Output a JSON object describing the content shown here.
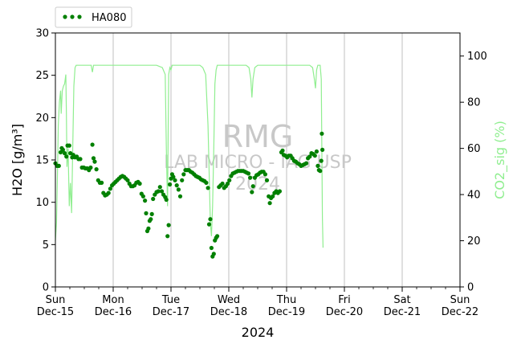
{
  "chart_data": {
    "type": "scatter",
    "legend": {
      "placement": "top-left-outside",
      "entries": [
        "HA080"
      ]
    },
    "xlabel": "2024",
    "ylabel_left": "H2O [g/m³]",
    "ylabel_right": "CO2_sig (%)",
    "xlim": [
      "2024-12-15",
      "2024-12-22"
    ],
    "ylim_left": [
      0,
      30
    ],
    "ylim_right": [
      0,
      110
    ],
    "yticks_left": [
      0,
      5,
      10,
      15,
      20,
      25,
      30
    ],
    "yticks_right": [
      0,
      20,
      40,
      60,
      80,
      100
    ],
    "grid": "vertical at daily ticks",
    "x_tick_labels": [
      {
        "day": "Sun",
        "date": "Dec-15"
      },
      {
        "day": "Mon",
        "date": "Dec-16"
      },
      {
        "day": "Tue",
        "date": "Dec-17"
      },
      {
        "day": "Wed",
        "date": "Dec-18"
      },
      {
        "day": "Thu",
        "date": "Dec-19"
      },
      {
        "day": "Fri",
        "date": "Dec-20"
      },
      {
        "day": "Sat",
        "date": "Dec-21"
      },
      {
        "day": "Sun",
        "date": "Dec-22"
      }
    ],
    "watermark": [
      "RMG",
      "LAB MICRO - IAG USP",
      "2024"
    ],
    "colors": {
      "h2o": "#008000",
      "co2": "#90ee90",
      "grid": "#b0b0b0",
      "watermark": "#c8c8c8"
    },
    "series": [
      {
        "name": "HA080",
        "axis": "left",
        "style": "dotted markers",
        "points": [
          [
            0.0,
            14.6
          ],
          [
            0.03,
            14.3
          ],
          [
            0.06,
            14.3
          ],
          [
            0.09,
            15.9
          ],
          [
            0.11,
            16.4
          ],
          [
            0.13,
            16.2
          ],
          [
            0.16,
            15.8
          ],
          [
            0.19,
            15.4
          ],
          [
            0.21,
            16.7
          ],
          [
            0.24,
            16.7
          ],
          [
            0.26,
            15.8
          ],
          [
            0.29,
            15.3
          ],
          [
            0.31,
            15.6
          ],
          [
            0.34,
            15.3
          ],
          [
            0.37,
            15.4
          ],
          [
            0.4,
            15.1
          ],
          [
            0.43,
            15.1
          ],
          [
            0.46,
            14.1
          ],
          [
            0.49,
            14.1
          ],
          [
            0.52,
            14.0
          ],
          [
            0.55,
            14.0
          ],
          [
            0.58,
            13.8
          ],
          [
            0.61,
            14.1
          ],
          [
            0.64,
            16.8
          ],
          [
            0.66,
            15.2
          ],
          [
            0.68,
            14.8
          ],
          [
            0.71,
            13.9
          ],
          [
            0.74,
            12.6
          ],
          [
            0.77,
            12.3
          ],
          [
            0.8,
            12.3
          ],
          [
            0.83,
            11.1
          ],
          [
            0.86,
            10.8
          ],
          [
            0.89,
            10.9
          ],
          [
            0.92,
            11.1
          ],
          [
            0.95,
            11.6
          ],
          [
            0.98,
            12.0
          ],
          [
            1.01,
            12.2
          ],
          [
            1.04,
            12.4
          ],
          [
            1.07,
            12.6
          ],
          [
            1.1,
            12.8
          ],
          [
            1.13,
            13.0
          ],
          [
            1.16,
            13.1
          ],
          [
            1.19,
            13.0
          ],
          [
            1.22,
            12.8
          ],
          [
            1.25,
            12.6
          ],
          [
            1.28,
            12.2
          ],
          [
            1.31,
            11.9
          ],
          [
            1.34,
            11.9
          ],
          [
            1.37,
            12.0
          ],
          [
            1.4,
            12.3
          ],
          [
            1.43,
            12.4
          ],
          [
            1.46,
            12.2
          ],
          [
            1.49,
            11.0
          ],
          [
            1.52,
            10.7
          ],
          [
            1.55,
            10.2
          ],
          [
            1.57,
            8.7
          ],
          [
            1.59,
            6.6
          ],
          [
            1.61,
            6.9
          ],
          [
            1.63,
            7.8
          ],
          [
            1.65,
            8.0
          ],
          [
            1.67,
            8.6
          ],
          [
            1.69,
            10.4
          ],
          [
            1.72,
            10.9
          ],
          [
            1.75,
            11.2
          ],
          [
            1.78,
            11.3
          ],
          [
            1.81,
            11.8
          ],
          [
            1.84,
            11.3
          ],
          [
            1.87,
            10.9
          ],
          [
            1.9,
            10.6
          ],
          [
            1.92,
            10.3
          ],
          [
            1.94,
            6.0
          ],
          [
            1.96,
            7.3
          ],
          [
            1.98,
            12.1
          ],
          [
            2.0,
            12.8
          ],
          [
            2.02,
            13.3
          ],
          [
            2.04,
            13.0
          ],
          [
            2.07,
            12.6
          ],
          [
            2.1,
            12.0
          ],
          [
            2.13,
            11.5
          ],
          [
            2.16,
            10.7
          ],
          [
            2.19,
            12.6
          ],
          [
            2.22,
            13.3
          ],
          [
            2.25,
            13.8
          ],
          [
            2.28,
            13.8
          ],
          [
            2.31,
            13.8
          ],
          [
            2.34,
            13.6
          ],
          [
            2.37,
            13.5
          ],
          [
            2.4,
            13.3
          ],
          [
            2.43,
            13.1
          ],
          [
            2.46,
            13.0
          ],
          [
            2.49,
            12.9
          ],
          [
            2.52,
            12.7
          ],
          [
            2.55,
            12.6
          ],
          [
            2.58,
            12.5
          ],
          [
            2.61,
            12.3
          ],
          [
            2.64,
            11.7
          ],
          [
            2.66,
            7.4
          ],
          [
            2.68,
            8.0
          ],
          [
            2.7,
            4.6
          ],
          [
            2.72,
            3.6
          ],
          [
            2.74,
            3.9
          ],
          [
            2.76,
            5.5
          ],
          [
            2.78,
            5.8
          ],
          [
            2.8,
            6.0
          ],
          [
            2.83,
            11.8
          ],
          [
            2.86,
            12.0
          ],
          [
            2.89,
            12.2
          ],
          [
            2.92,
            11.7
          ],
          [
            2.95,
            11.9
          ],
          [
            2.98,
            12.2
          ],
          [
            3.01,
            12.6
          ],
          [
            3.04,
            13.1
          ],
          [
            3.07,
            13.4
          ],
          [
            3.1,
            13.5
          ],
          [
            3.13,
            13.6
          ],
          [
            3.16,
            13.7
          ],
          [
            3.19,
            13.7
          ],
          [
            3.22,
            13.7
          ],
          [
            3.25,
            13.7
          ],
          [
            3.28,
            13.6
          ],
          [
            3.31,
            13.5
          ],
          [
            3.34,
            13.4
          ],
          [
            3.37,
            12.9
          ],
          [
            3.4,
            11.2
          ],
          [
            3.42,
            11.9
          ],
          [
            3.45,
            12.9
          ],
          [
            3.48,
            13.2
          ],
          [
            3.51,
            13.3
          ],
          [
            3.54,
            13.5
          ],
          [
            3.57,
            13.6
          ],
          [
            3.6,
            13.6
          ],
          [
            3.63,
            13.3
          ],
          [
            3.66,
            12.6
          ],
          [
            3.69,
            10.7
          ],
          [
            3.71,
            9.9
          ],
          [
            3.73,
            10.5
          ],
          [
            3.76,
            10.7
          ],
          [
            3.79,
            11.1
          ],
          [
            3.82,
            11.3
          ],
          [
            3.85,
            11.1
          ],
          [
            3.88,
            11.3
          ],
          [
            3.91,
            15.9
          ],
          [
            3.93,
            16.1
          ],
          [
            3.95,
            15.6
          ],
          [
            3.98,
            15.5
          ],
          [
            4.01,
            15.3
          ],
          [
            4.04,
            15.5
          ],
          [
            4.07,
            15.5
          ],
          [
            4.1,
            15.2
          ],
          [
            4.13,
            14.9
          ],
          [
            4.16,
            14.8
          ],
          [
            4.19,
            14.6
          ],
          [
            4.22,
            14.5
          ],
          [
            4.25,
            14.3
          ],
          [
            4.28,
            14.4
          ],
          [
            4.31,
            14.5
          ],
          [
            4.34,
            14.6
          ],
          [
            4.37,
            15.2
          ],
          [
            4.4,
            15.4
          ],
          [
            4.43,
            15.8
          ],
          [
            4.46,
            15.7
          ],
          [
            4.49,
            15.5
          ],
          [
            4.52,
            16.0
          ],
          [
            4.54,
            14.3
          ],
          [
            4.56,
            13.8
          ],
          [
            4.58,
            13.7
          ],
          [
            4.6,
            14.9
          ],
          [
            4.61,
            18.1
          ],
          [
            4.62,
            16.2
          ]
        ]
      },
      {
        "name": "CO2_sig",
        "axis": "right",
        "style": "line",
        "points": [
          [
            0.0,
            20
          ],
          [
            0.02,
            28
          ],
          [
            0.04,
            55
          ],
          [
            0.05,
            70
          ],
          [
            0.07,
            80
          ],
          [
            0.09,
            85
          ],
          [
            0.1,
            75
          ],
          [
            0.12,
            85
          ],
          [
            0.14,
            87
          ],
          [
            0.16,
            88
          ],
          [
            0.18,
            92
          ],
          [
            0.19,
            75
          ],
          [
            0.2,
            52
          ],
          [
            0.22,
            60
          ],
          [
            0.24,
            35
          ],
          [
            0.26,
            45
          ],
          [
            0.28,
            32
          ],
          [
            0.3,
            60
          ],
          [
            0.32,
            87
          ],
          [
            0.34,
            95
          ],
          [
            0.36,
            96
          ],
          [
            0.45,
            96
          ],
          [
            0.55,
            96
          ],
          [
            0.62,
            96
          ],
          [
            0.64,
            93
          ],
          [
            0.66,
            96
          ],
          [
            0.75,
            96
          ],
          [
            0.85,
            96
          ],
          [
            0.95,
            96
          ],
          [
            1.05,
            96
          ],
          [
            1.15,
            96
          ],
          [
            1.25,
            96
          ],
          [
            1.35,
            96
          ],
          [
            1.45,
            96
          ],
          [
            1.55,
            96
          ],
          [
            1.65,
            96
          ],
          [
            1.75,
            96
          ],
          [
            1.85,
            95
          ],
          [
            1.9,
            92
          ],
          [
            1.92,
            60
          ],
          [
            1.94,
            35
          ],
          [
            1.96,
            92
          ],
          [
            1.98,
            95
          ],
          [
            2.0,
            94
          ],
          [
            2.02,
            96
          ],
          [
            2.1,
            96
          ],
          [
            2.2,
            96
          ],
          [
            2.3,
            96
          ],
          [
            2.4,
            96
          ],
          [
            2.5,
            96
          ],
          [
            2.55,
            95
          ],
          [
            2.6,
            92
          ],
          [
            2.64,
            70
          ],
          [
            2.66,
            50
          ],
          [
            2.68,
            28
          ],
          [
            2.7,
            22
          ],
          [
            2.72,
            35
          ],
          [
            2.74,
            60
          ],
          [
            2.76,
            88
          ],
          [
            2.78,
            94
          ],
          [
            2.8,
            96
          ],
          [
            2.9,
            96
          ],
          [
            3.0,
            96
          ],
          [
            3.1,
            96
          ],
          [
            3.2,
            96
          ],
          [
            3.3,
            96
          ],
          [
            3.35,
            95
          ],
          [
            3.38,
            90
          ],
          [
            3.4,
            82
          ],
          [
            3.42,
            90
          ],
          [
            3.45,
            95
          ],
          [
            3.5,
            96
          ],
          [
            3.6,
            96
          ],
          [
            3.7,
            96
          ],
          [
            3.8,
            96
          ],
          [
            3.9,
            96
          ],
          [
            4.0,
            96
          ],
          [
            4.1,
            96
          ],
          [
            4.2,
            96
          ],
          [
            4.3,
            96
          ],
          [
            4.4,
            96
          ],
          [
            4.45,
            95
          ],
          [
            4.48,
            90
          ],
          [
            4.5,
            86
          ],
          [
            4.52,
            94
          ],
          [
            4.54,
            96
          ],
          [
            4.56,
            96
          ],
          [
            4.58,
            96
          ],
          [
            4.6,
            90
          ],
          [
            4.62,
            30
          ],
          [
            4.63,
            17
          ]
        ]
      }
    ]
  }
}
